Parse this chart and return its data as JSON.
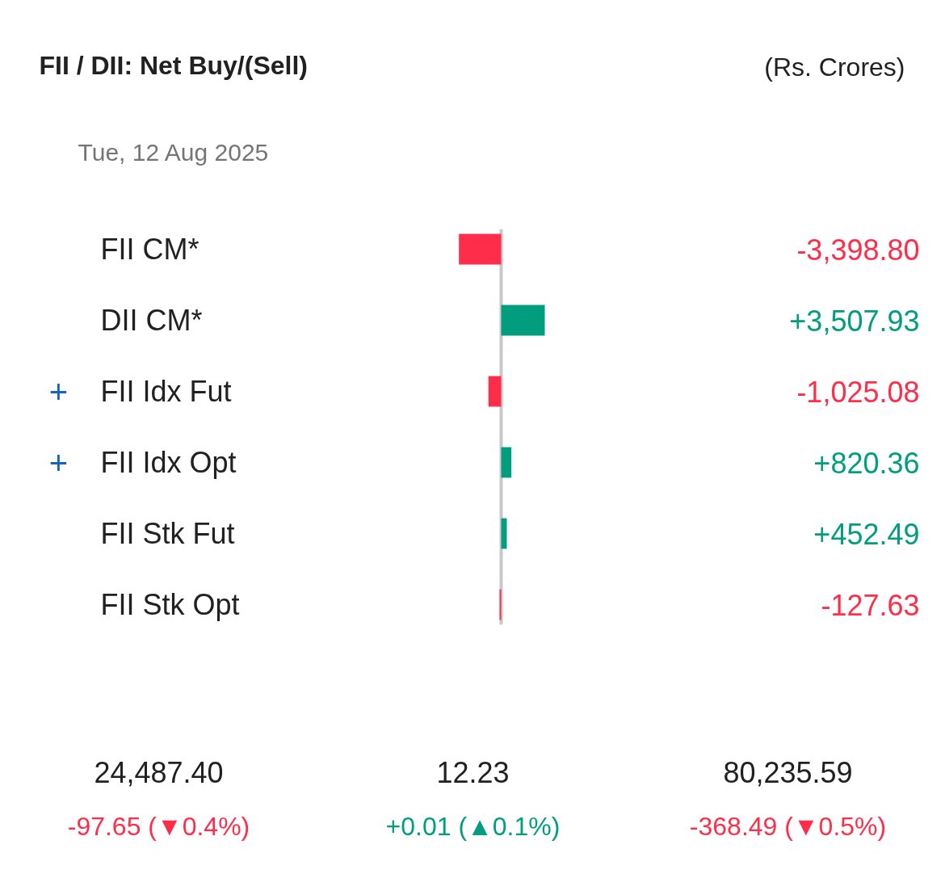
{
  "chart_data": [
    {
      "type": "bar",
      "orientation": "horizontal",
      "title": "FII / DII: Net Buy/(Sell)",
      "annotations": [
        "(Rs. Crores)",
        "Tue, 12 Aug 2025",
        "+",
        "+"
      ],
      "categories": [
        "FII CM*",
        "DII CM*",
        "FII Idx Fut",
        "FII Idx Opt",
        "FII Stk Fut",
        "FII Stk Opt"
      ],
      "values": [
        -3398.8,
        3507.93,
        -1025.08,
        820.36,
        452.49,
        -127.63
      ],
      "colors": [
        "#ff2d4a",
        "#009e7e",
        "#ff2d4a",
        "#009e7e",
        "#009e7e",
        "#ff2d4a"
      ],
      "value_labels": [
        "-3,398.80",
        "+3,507.93",
        "-1,025.08",
        "+820.36",
        "+452.49",
        "-127.63"
      ],
      "ref_lines": [
        {
          "axis": "x",
          "value": 0,
          "color": "#c8c8c8"
        }
      ],
      "tick_labels": false,
      "grid": false
    },
    {
      "type": "other",
      "annotations": [
        "24,487.40",
        "12.23",
        "80,235.59",
        "-97.65 (▼0.4%)",
        "+0.01 (▲0.1%)",
        "-368.49 (▼0.5%)"
      ],
      "colors": [
        "#212121",
        "#212121",
        "#212121",
        "#ff2d4a",
        "#009e7e",
        "#ff2d4a"
      ]
    }
  ]
}
